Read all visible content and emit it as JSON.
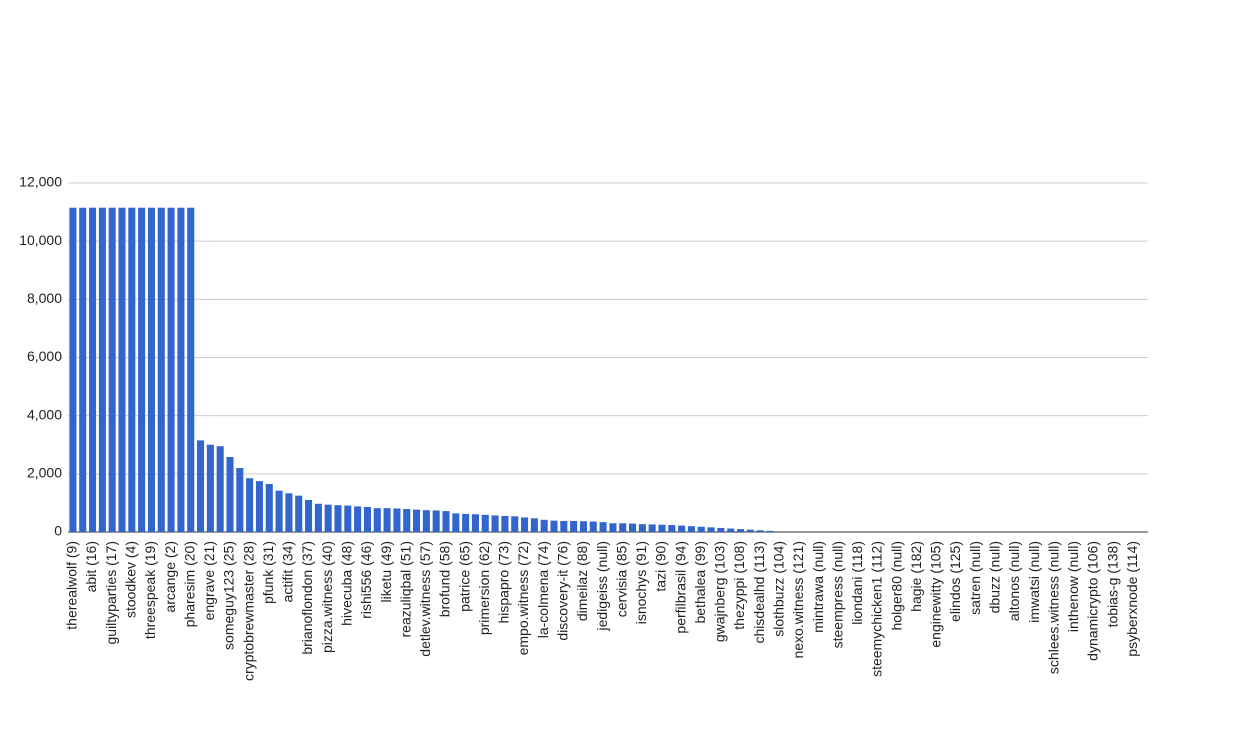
{
  "chart_data": {
    "type": "bar",
    "categories": [
      "therealwolf (9)",
      null,
      "abit (16)",
      null,
      "guiltyparties (17)",
      null,
      "stoodkev (4)",
      null,
      "threespeak (19)",
      null,
      "arcange (2)",
      null,
      "pharesim (20)",
      null,
      "engrave (21)",
      null,
      "someguy123 (25)",
      null,
      "cryptobrewmaster (28)",
      null,
      "pfunk (31)",
      null,
      "actifit (34)",
      null,
      "brianoflondon (37)",
      null,
      "pizza.witness (40)",
      null,
      "hivecuba (48)",
      null,
      "rishi556 (46)",
      null,
      "liketu (49)",
      null,
      "reazuliqbal (51)",
      null,
      "detlev.witness (57)",
      null,
      "brofund (58)",
      null,
      "patrice (65)",
      null,
      "primersion (62)",
      null,
      "hispapro (73)",
      null,
      "empo.witness (72)",
      null,
      "la-colmena (74)",
      null,
      "discovery-it (76)",
      null,
      "dimeilaz (88)",
      null,
      "jedigeiss (null)",
      null,
      "cervisia (85)",
      null,
      "isnochys (91)",
      null,
      "tazi (90)",
      null,
      "perfilbrasil (94)",
      null,
      "bethalea (99)",
      null,
      "gwajnberg (103)",
      null,
      "thezyppi (108)",
      null,
      "chisdealhd (113)",
      null,
      "slothbuzz (104)",
      null,
      "nexo.witness (121)",
      null,
      "mintrawa (null)",
      null,
      "steempress (null)",
      null,
      "liondani (118)",
      null,
      "steemychicken1 (112)",
      null,
      "holger80 (null)",
      null,
      "hagie (182)",
      null,
      "enginewitty (105)",
      null,
      "elindos (125)",
      null,
      "satren (null)",
      null,
      "dbuzz (null)",
      null,
      "altonos (null)",
      null,
      "imwatsi (null)",
      null,
      "schlees.witness (null)",
      null,
      "inthenow (null)",
      null,
      "dynamicrypto (106)",
      null,
      "tobias-g (138)",
      null,
      "psyberxnode (114)",
      null
    ],
    "values": [
      11150,
      11150,
      11150,
      11150,
      11150,
      11150,
      11150,
      11150,
      11150,
      11150,
      11150,
      11150,
      11150,
      3150,
      3000,
      2950,
      2580,
      2200,
      1850,
      1750,
      1650,
      1420,
      1330,
      1250,
      1100,
      970,
      940,
      920,
      910,
      880,
      860,
      820,
      820,
      810,
      790,
      770,
      750,
      740,
      720,
      640,
      620,
      610,
      590,
      570,
      550,
      540,
      500,
      470,
      420,
      390,
      380,
      380,
      370,
      360,
      340,
      300,
      300,
      290,
      270,
      260,
      250,
      240,
      220,
      200,
      180,
      160,
      140,
      120,
      100,
      80,
      60,
      40,
      0,
      0,
      0,
      0,
      0,
      0,
      0,
      0,
      0,
      0,
      0,
      0,
      0,
      0,
      0,
      0,
      0,
      0,
      0,
      0,
      0,
      0,
      0,
      0,
      0,
      0,
      0,
      0,
      0,
      0,
      0,
      0,
      0,
      0,
      0,
      0,
      0,
      0
    ],
    "color": "#3366cc",
    "ylim": [
      0,
      12000
    ],
    "yticks": [
      0,
      {
        "value": 2000,
        "label": "2,000"
      },
      {
        "value": 4000,
        "label": "4,000"
      },
      {
        "value": 6000,
        "label": "6,000"
      },
      {
        "value": 8000,
        "label": "8,000"
      },
      {
        "value": 10000,
        "label": "10,000"
      },
      {
        "value": 12000,
        "label": "12,000"
      }
    ],
    "grid": true
  }
}
